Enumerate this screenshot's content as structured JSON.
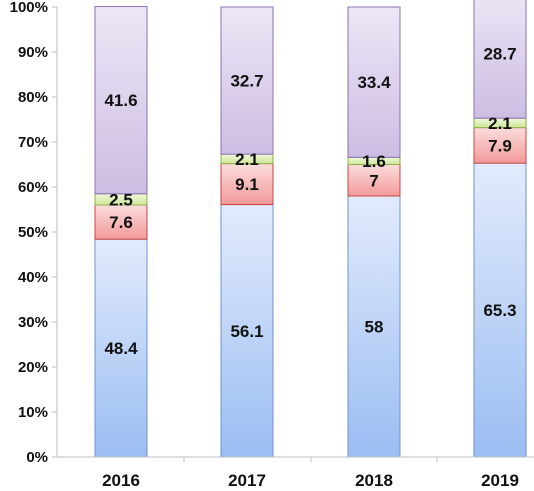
{
  "chart_data": {
    "type": "bar",
    "stacked": true,
    "percent": true,
    "categories": [
      "2016",
      "2017",
      "2018",
      "2019"
    ],
    "series": [
      {
        "values": [
          48.4,
          56.1,
          58,
          65.3
        ],
        "color_top": "#e2ebfc",
        "color_bottom": "#9bbdf2",
        "stroke": "#6e93cf"
      },
      {
        "values": [
          7.6,
          9.1,
          7,
          7.9
        ],
        "color_top": "#fbdcdc",
        "color_bottom": "#f29a9a",
        "stroke": "#cc4444"
      },
      {
        "values": [
          2.5,
          2.1,
          1.6,
          2.1
        ],
        "color_top": "#f1f8dc",
        "color_bottom": "#cfe79a",
        "stroke": "#8fb046"
      },
      {
        "values": [
          41.6,
          32.7,
          33.4,
          28.7
        ],
        "color_top": "#ede7f6",
        "color_bottom": "#cdbde3",
        "stroke": "#8a72b5"
      }
    ],
    "data_labels": [
      [
        "48.4",
        "56.1",
        "58",
        "65.3"
      ],
      [
        "7.6",
        "9.1",
        "7",
        "7.9"
      ],
      [
        "2.5",
        "2.1",
        "1.6",
        "2.1"
      ],
      [
        "41.6",
        "32.7",
        "33.4",
        "28.7"
      ]
    ],
    "y_ticks": [
      "0%",
      "10%",
      "20%",
      "30%",
      "40%",
      "50%",
      "60%",
      "70%",
      "80%",
      "90%",
      "100%"
    ],
    "ylim": [
      0,
      100
    ],
    "grid": false,
    "legend": "none",
    "title": "",
    "xlabel": "",
    "ylabel": ""
  }
}
